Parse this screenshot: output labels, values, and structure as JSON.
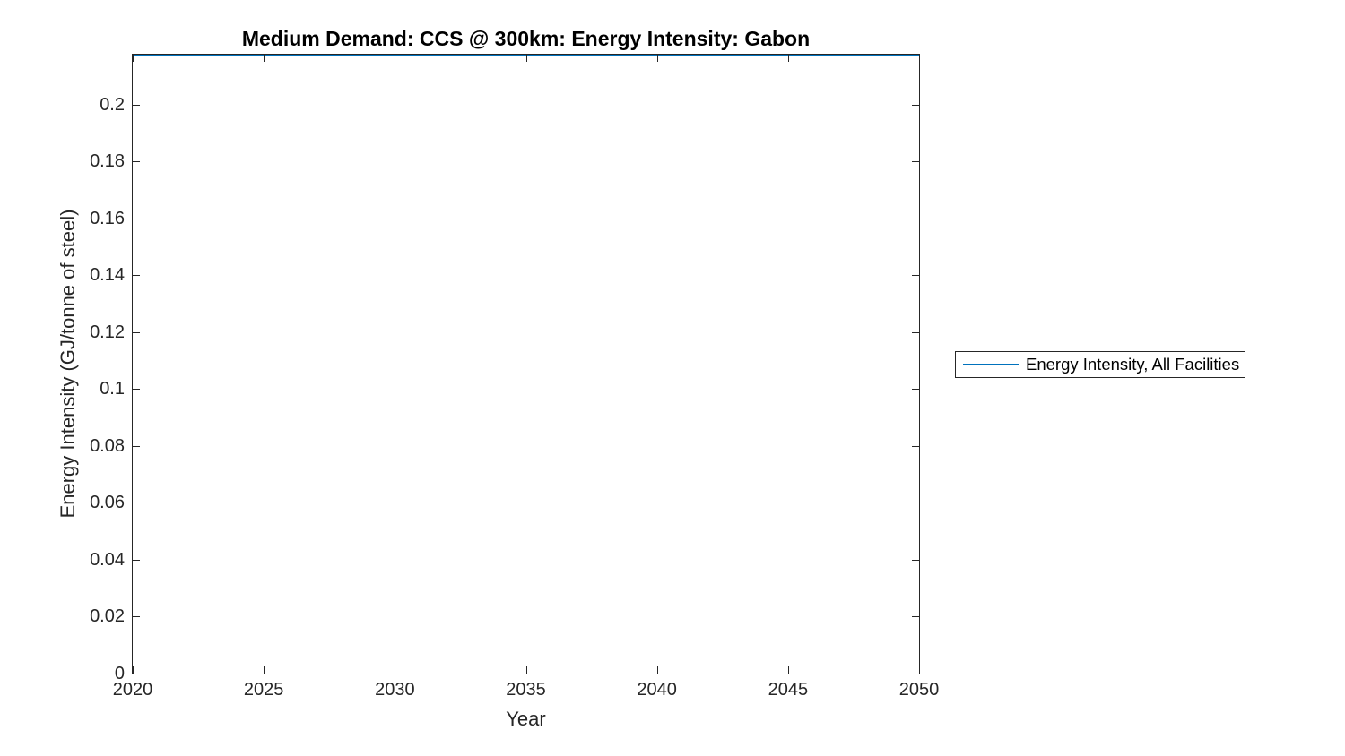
{
  "figure": {
    "title": "Medium Demand: CCS @ 300km: Energy Intensity: Gabon",
    "xlabel": "Year",
    "ylabel": "Energy Intensity (GJ/tonne of steel)",
    "legend": {
      "label": "Energy Intensity, All Facilities",
      "line_color": "#0072BD"
    }
  },
  "chart_data": {
    "type": "line",
    "title": "Medium Demand: CCS @ 300km: Energy Intensity: Gabon",
    "xlabel": "Year",
    "ylabel": "Energy Intensity (GJ/tonne of steel)",
    "xlim": [
      2020,
      2050
    ],
    "ylim": [
      0,
      0.2176
    ],
    "x_ticks": [
      2020,
      2025,
      2030,
      2035,
      2040,
      2045,
      2050
    ],
    "x_tick_labels": [
      "2020",
      "2025",
      "2030",
      "2035",
      "2040",
      "2045",
      "2050"
    ],
    "y_ticks": [
      0,
      0.02,
      0.04,
      0.06,
      0.08,
      0.1,
      0.12,
      0.14,
      0.16,
      0.18,
      0.2
    ],
    "y_tick_labels": [
      "0",
      "0.02",
      "0.04",
      "0.06",
      "0.08",
      "0.1",
      "0.12",
      "0.14",
      "0.16",
      "0.18",
      "0.2"
    ],
    "grid": false,
    "box": true,
    "tick_direction": "in",
    "legend_position": "outside-right",
    "series": [
      {
        "name": "Energy Intensity, All Facilities",
        "color": "#0072BD",
        "x": [
          2020,
          2025,
          2030,
          2035,
          2040,
          2045,
          2050
        ],
        "values": [
          0.2176,
          0.2176,
          0.2176,
          0.2176,
          0.2176,
          0.2176,
          0.2176
        ],
        "note": "constant horizontal line rendered flush with the top of the axes (value estimated from axis scale, ~0.218)"
      }
    ]
  },
  "colors": {
    "line": "#0072BD",
    "axis": "#262626",
    "tick_text": "#262626",
    "title_text": "#000000",
    "background": "#ffffff"
  }
}
